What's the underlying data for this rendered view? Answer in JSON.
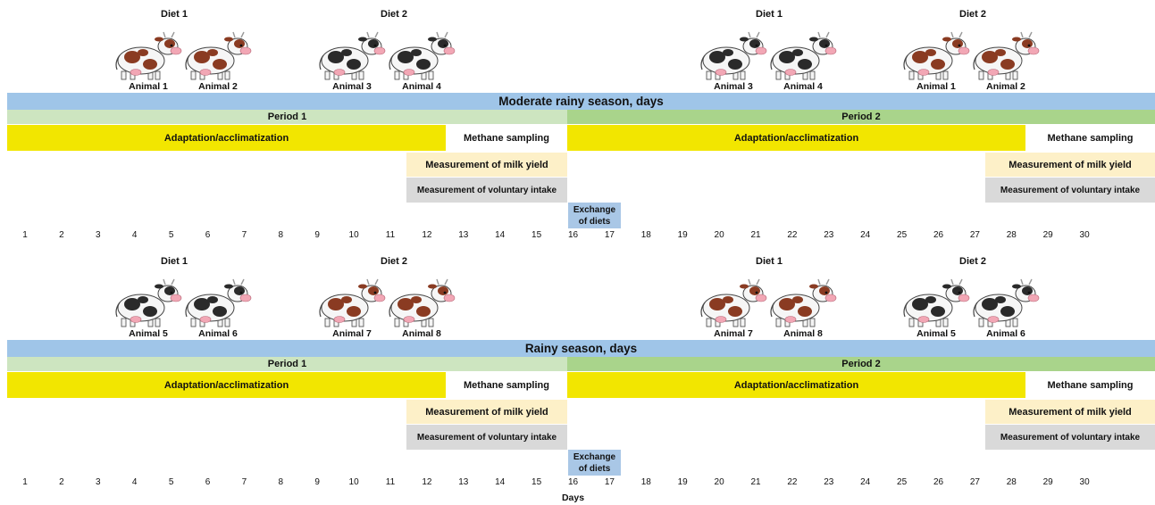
{
  "panels": [
    {
      "groups": [
        {
          "diet": "Diet 1",
          "animals": [
            "Animal 1",
            "Animal 2"
          ],
          "coat": "brown"
        },
        {
          "diet": "Diet 2",
          "animals": [
            "Animal 3",
            "Animal 4"
          ],
          "coat": "black"
        },
        {
          "diet": "Diet 1",
          "animals": [
            "Animal 3",
            "Animal 4"
          ],
          "coat": "black"
        },
        {
          "diet": "Diet 2",
          "animals": [
            "Animal 1",
            "Animal 2"
          ],
          "coat": "brown"
        }
      ],
      "season": "Moderate rainy season, days",
      "period1": "Period 1",
      "period2": "Period 2",
      "adaptation": "Adaptation/acclimatization",
      "methane": "Methane sampling",
      "milk": "Measurement of milk yield",
      "intake": "Measurement of voluntary intake",
      "exchange": "Exchange of diets"
    },
    {
      "groups": [
        {
          "diet": "Diet 1",
          "animals": [
            "Animal 5",
            "Animal 6"
          ],
          "coat": "black"
        },
        {
          "diet": "Diet 2",
          "animals": [
            "Animal 7",
            "Animal 8"
          ],
          "coat": "brown"
        },
        {
          "diet": "Diet 1",
          "animals": [
            "Animal 7",
            "Animal 8"
          ],
          "coat": "brown"
        },
        {
          "diet": "Diet 2",
          "animals": [
            "Animal 5",
            "Animal 6"
          ],
          "coat": "black"
        }
      ],
      "season": "Rainy season, days",
      "period1": "Period 1",
      "period2": "Period 2",
      "adaptation": "Adaptation/acclimatization",
      "methane": "Methane sampling",
      "milk": "Measurement of milk yield",
      "intake": "Measurement of voluntary intake",
      "exchange": "Exchange of diets"
    }
  ],
  "days": [
    "1",
    "2",
    "3",
    "4",
    "5",
    "6",
    "7",
    "8",
    "9",
    "10",
    "11",
    "12",
    "13",
    "14",
    "15",
    "16",
    "17",
    "18",
    "19",
    "20",
    "21",
    "22",
    "23",
    "24",
    "25",
    "26",
    "27",
    "28",
    "29",
    "30"
  ],
  "axis_label": "Days",
  "colors": {
    "season": "#9fc5e8",
    "period1": "#cde5c0",
    "period2": "#a9d48b",
    "adaptation": "#f2e600",
    "milk": "#fdf0c8",
    "intake": "#d9d9d9",
    "exchange": "#a9c7e6",
    "cow_brown": "#8a3b22",
    "cow_black": "#2a2a2a"
  }
}
